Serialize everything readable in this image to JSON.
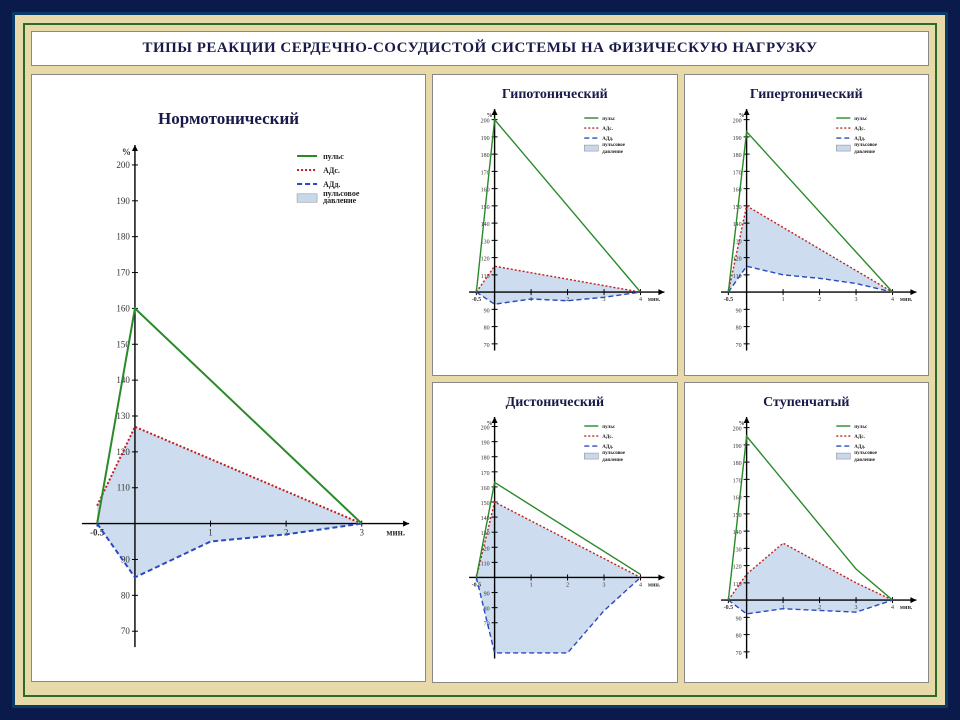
{
  "title": "ТИПЫ РЕАКЦИИ СЕРДЕЧНО-СОСУДИСТОЙ СИСТЕМЫ НА ФИЗИЧЕСКУЮ НАГРУЗКУ",
  "colors": {
    "pulse": "#2a8a2a",
    "ads": "#c02020",
    "add": "#2a4ac0",
    "fill": "#c8d8ec",
    "axis": "#000",
    "bg_outer": "#e8d9a8",
    "frame_blue": "#0a3a6a",
    "frame_green": "#2a6a2a"
  },
  "legend": {
    "items": [
      {
        "label": "пульс",
        "kind": "solid",
        "color": "#2a8a2a"
      },
      {
        "label": "АДс.",
        "kind": "dotted",
        "color": "#c02020"
      },
      {
        "label": "АДд.",
        "kind": "dashed",
        "color": "#2a4ac0"
      },
      {
        "label": "пульсовое\nдавление",
        "kind": "fill",
        "color": "#c8d8ec"
      }
    ]
  },
  "axes": {
    "ylabel": "%",
    "xlabel": "мин.",
    "y_ticks_main": [
      70,
      80,
      90,
      110,
      120,
      130,
      140,
      150,
      160,
      170,
      180,
      190,
      200
    ],
    "y_ticks_small": [
      70,
      80,
      90,
      110,
      120,
      130,
      140,
      150,
      160,
      170,
      180,
      190,
      200
    ],
    "x_ticks_main": [
      -0.5,
      1,
      2,
      3
    ],
    "x_ticks_small": [
      -0.5,
      1,
      2,
      3,
      4
    ],
    "baseline": 100
  },
  "charts": {
    "main": {
      "title": "Нормотонический",
      "x_ticks": [
        -0.5,
        1,
        2,
        3
      ],
      "pulse": {
        "x": [
          -0.5,
          0,
          3
        ],
        "y": [
          100,
          160,
          100
        ]
      },
      "ads": {
        "x": [
          -0.5,
          0,
          3
        ],
        "y": [
          105,
          127,
          100
        ]
      },
      "add": {
        "x": [
          -0.5,
          0,
          1,
          2,
          3
        ],
        "y": [
          100,
          85,
          95,
          97,
          100
        ]
      }
    },
    "hypo": {
      "title": "Гипотонический",
      "x_ticks": [
        -0.5,
        1,
        2,
        3,
        4
      ],
      "pulse": {
        "x": [
          -0.5,
          0,
          4
        ],
        "y": [
          100,
          200,
          100
        ]
      },
      "ads": {
        "x": [
          -0.5,
          0,
          4
        ],
        "y": [
          100,
          115,
          100
        ]
      },
      "add": {
        "x": [
          -0.5,
          0,
          1,
          2,
          3,
          4
        ],
        "y": [
          100,
          93,
          96,
          95,
          97,
          100
        ]
      }
    },
    "hyper": {
      "title": "Гипертонический",
      "x_ticks": [
        -0.5,
        1,
        2,
        3,
        4
      ],
      "pulse": {
        "x": [
          -0.5,
          0,
          4
        ],
        "y": [
          100,
          193,
          100
        ]
      },
      "ads": {
        "x": [
          -0.5,
          0,
          4
        ],
        "y": [
          100,
          150,
          100
        ]
      },
      "add": {
        "x": [
          -0.5,
          0,
          1,
          2,
          3,
          4
        ],
        "y": [
          100,
          115,
          110,
          108,
          105,
          100
        ]
      }
    },
    "dysto": {
      "title": "Дистонический",
      "x_ticks": [
        -0.5,
        1,
        2,
        3,
        4
      ],
      "pulse": {
        "x": [
          -0.5,
          0,
          4
        ],
        "y": [
          100,
          163,
          102
        ]
      },
      "ads": {
        "x": [
          -0.5,
          0,
          4
        ],
        "y": [
          100,
          150,
          100
        ]
      },
      "add": {
        "x": [
          -0.5,
          0,
          1,
          2,
          3,
          4
        ],
        "y": [
          100,
          50,
          50,
          50,
          78,
          100
        ]
      }
    },
    "step": {
      "title": "Ступенчатый",
      "x_ticks": [
        -0.5,
        1,
        2,
        3,
        4
      ],
      "pulse": {
        "x": [
          -0.5,
          0,
          3,
          4
        ],
        "y": [
          100,
          195,
          118,
          100
        ]
      },
      "ads": {
        "x": [
          -0.5,
          0,
          1,
          3,
          4
        ],
        "y": [
          100,
          115,
          133,
          110,
          100
        ]
      },
      "add": {
        "x": [
          -0.5,
          0,
          1,
          2,
          3,
          4
        ],
        "y": [
          100,
          92,
          95,
          94,
          93,
          100
        ]
      }
    }
  },
  "style": {
    "line_width_main": 2,
    "line_width_small": 1.4,
    "dash_ads": "2,2",
    "dash_add": "5,3",
    "title_fontsize_main": 17,
    "title_fontsize_small": 14
  }
}
